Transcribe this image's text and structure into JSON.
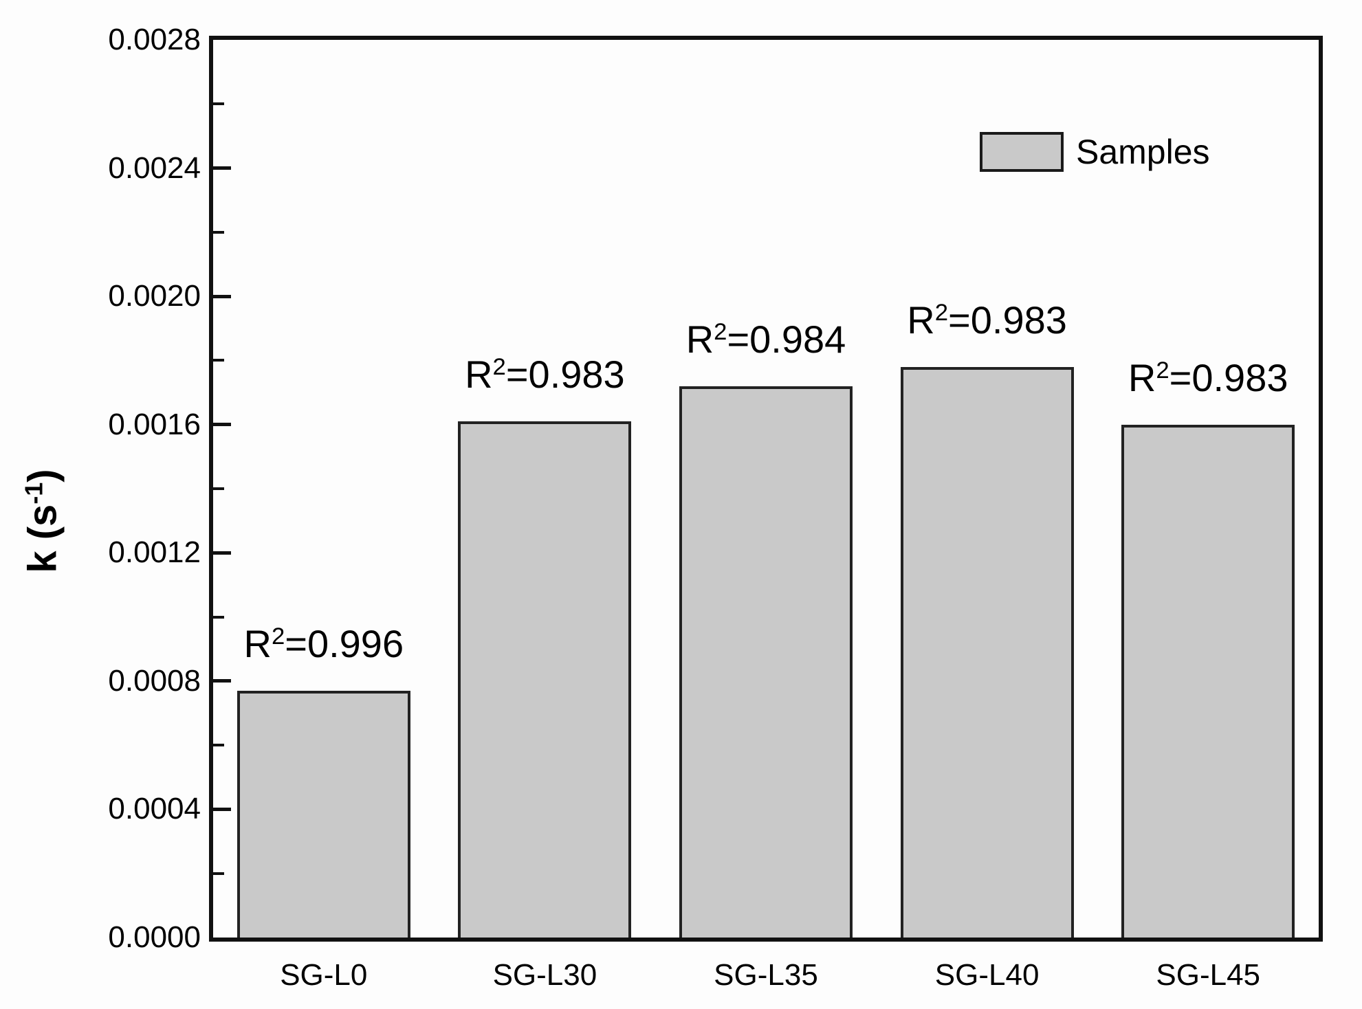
{
  "chart_data": {
    "type": "bar",
    "title": "",
    "categories": [
      "SG-L0",
      "SG-L30",
      "SG-L35",
      "SG-L40",
      "SG-L45"
    ],
    "values": [
      0.00077,
      0.00161,
      0.00172,
      0.00178,
      0.0016
    ],
    "bar_annotations": [
      "R²=0.996",
      "R²=0.983",
      "R²=0.984",
      "R²=0.983",
      "R²=0.983"
    ],
    "xlabel": "",
    "ylabel": "k (s⁻¹)",
    "ylim": [
      0,
      0.0028
    ],
    "y_major_ticks": [
      0,
      0.0004,
      0.0008,
      0.0012,
      0.0016,
      0.002,
      0.0024,
      0.0028
    ],
    "y_tick_labels": [
      "0.0000",
      "0.0004",
      "0.0008",
      "0.0012",
      "0.0016",
      "0.0020",
      "0.0024",
      "0.0028"
    ],
    "y_minor_step": 0.0002,
    "grid": false,
    "legend": {
      "position": "upper right",
      "entries": [
        {
          "label": "Samples",
          "swatch_color": "#c9c9c9"
        }
      ]
    },
    "colors": {
      "bar_fill": "#c9c9c9",
      "bar_border": "#222222",
      "axis": "#111111",
      "text": "#000000",
      "background": "#fdfdfd"
    }
  }
}
